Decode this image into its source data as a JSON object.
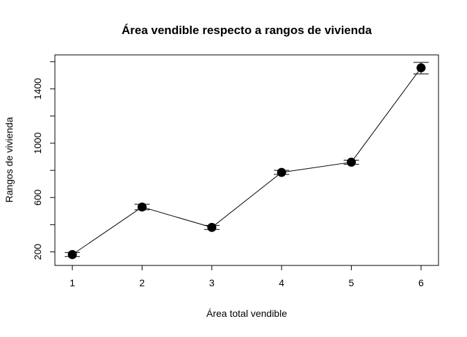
{
  "chart_data": {
    "type": "line",
    "title": "Área vendible respecto a rangos de vivienda",
    "xlabel": "Área total vendible",
    "ylabel": "Rangos de vivienda",
    "x": [
      1,
      2,
      3,
      4,
      5,
      6
    ],
    "series": [
      {
        "values": [
          180,
          530,
          380,
          785,
          860,
          1555
        ],
        "error_low": [
          165,
          510,
          365,
          770,
          845,
          1510
        ],
        "error_high": [
          195,
          550,
          395,
          800,
          875,
          1595
        ]
      }
    ],
    "xticks": [
      1,
      2,
      3,
      4,
      5,
      6
    ],
    "yticks": [
      200,
      600,
      1000,
      1400
    ],
    "xlim": [
      0.75,
      6.25
    ],
    "ylim": [
      100,
      1650
    ],
    "grid": false,
    "legend": "none",
    "marker": "filled-circle",
    "line_color": "#000000",
    "marker_color": "#000000"
  }
}
